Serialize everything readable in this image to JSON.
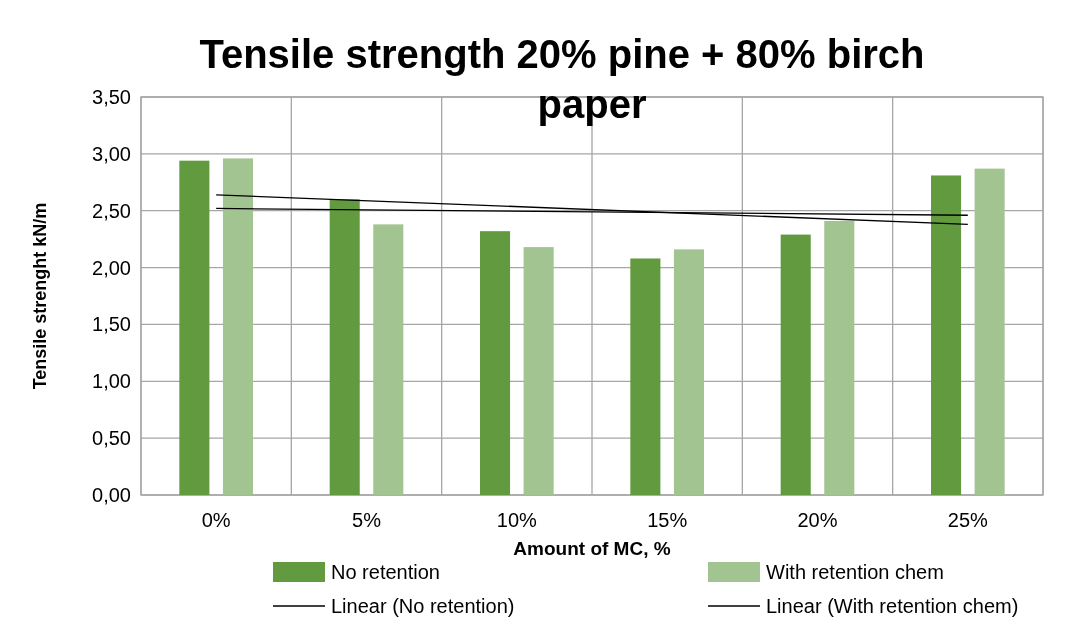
{
  "chart_data": {
    "type": "bar",
    "title": "Tensile strength 20% pine + 80% birch paper",
    "xlabel": "Amount of MC, %",
    "ylabel": "Tensile strenght kN/m",
    "categories": [
      "0%",
      "5%",
      "10%",
      "15%",
      "20%",
      "25%"
    ],
    "series": [
      {
        "name": "No retention",
        "color": "#629a3f",
        "values": [
          2.94,
          2.6,
          2.32,
          2.08,
          2.29,
          2.81
        ]
      },
      {
        "name": "With retention chem",
        "color": "#a2c490",
        "values": [
          2.96,
          2.38,
          2.18,
          2.16,
          2.41,
          2.87
        ]
      },
      {
        "name": "Linear (No retention)",
        "type": "line",
        "color": "#000000",
        "x": [
          "0%",
          "25%"
        ],
        "values": [
          2.64,
          2.38
        ]
      },
      {
        "name": "Linear (With retention chem)",
        "type": "line",
        "color": "#000000",
        "x": [
          "0%",
          "25%"
        ],
        "values": [
          2.52,
          2.46
        ]
      }
    ],
    "ylim": [
      0,
      3.5
    ],
    "yticks": [
      {
        "value": 0,
        "label": "0,00"
      },
      {
        "value": 0.5,
        "label": "0,50"
      },
      {
        "value": 1,
        "label": "1,00"
      },
      {
        "value": 1.5,
        "label": "1,50"
      },
      {
        "value": 2,
        "label": "2,00"
      },
      {
        "value": 2.5,
        "label": "2,50"
      },
      {
        "value": 3,
        "label": "3,00"
      },
      {
        "value": 3.5,
        "label": "3,50"
      }
    ],
    "grid": true,
    "legend": "bottom"
  }
}
